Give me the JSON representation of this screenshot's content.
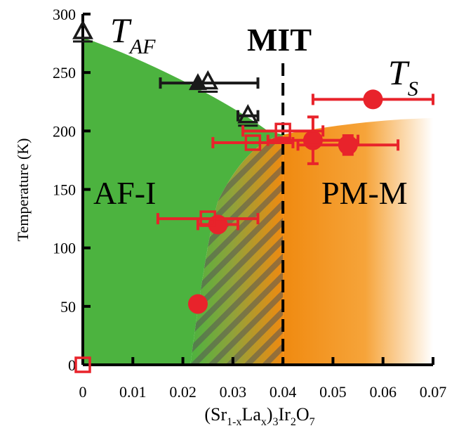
{
  "chart_data": {
    "type": "scatter",
    "title": "",
    "xlabel_parts": {
      "open1": "(Sr",
      "sub1": "1-x",
      "mid1": "La",
      "sub2": "x",
      "mid2": ")",
      "sub3": "3",
      "mid3": "Ir",
      "sub4": "2",
      "mid4": "O",
      "sub5": "7"
    },
    "ylabel": "Temperature (K)",
    "xlim": [
      0,
      0.07
    ],
    "ylim": [
      0,
      300
    ],
    "x_ticks": [
      "0",
      "0.01",
      "0.02",
      "0.03",
      "0.04",
      "0.05",
      "0.06",
      "0.07"
    ],
    "y_ticks": [
      "0",
      "50",
      "100",
      "150",
      "200",
      "250",
      "300"
    ],
    "grid": false,
    "annotations": {
      "tae_main": "T",
      "tae_sub": "AF",
      "ts_main": "T",
      "ts_sub": "S",
      "mit": "MIT",
      "afi": "AF-I",
      "pmm": "PM-M"
    },
    "mit_x": 0.04,
    "colors": {
      "af_region": "#4cb33f",
      "pm_region": "#f39a1e",
      "red": "#e8232b",
      "black": "#1a1a1a"
    },
    "series": [
      {
        "marker": "open-triangle",
        "color": "#1a1a1a",
        "points": [
          {
            "x": 0,
            "y": 285,
            "xerr": 0
          },
          {
            "x": 0.025,
            "y": 242,
            "xerr": 0
          },
          {
            "x": 0.033,
            "y": 213,
            "xerr": 0.002
          }
        ]
      },
      {
        "marker": "filled-triangle",
        "color": "#1a1a1a",
        "points": [
          {
            "x": 0.023,
            "y": 241,
            "xerr": 0.0075,
            "xerr_right": 0.012
          }
        ]
      },
      {
        "marker": "filled-circle",
        "color": "#e8232b",
        "points": [
          {
            "x": 0.023,
            "y": 52,
            "xerr": 0,
            "yerr": 0
          },
          {
            "x": 0.027,
            "y": 120,
            "xerr": 0.004,
            "yerr": 0
          },
          {
            "x": 0.046,
            "y": 192,
            "xerr": 0.009,
            "yerr": 20
          },
          {
            "x": 0.053,
            "y": 188,
            "xerr": 0.01,
            "yerr": 8
          },
          {
            "x": 0.058,
            "y": 227,
            "xerr": 0.012,
            "yerr": 0
          }
        ]
      },
      {
        "marker": "open-square",
        "color": "#e8232b",
        "points": [
          {
            "x": 0,
            "y": 0,
            "xerr": 0
          },
          {
            "x": 0.025,
            "y": 125,
            "xerr": 0.01
          },
          {
            "x": 0.034,
            "y": 190,
            "xerr": 0.008
          },
          {
            "x": 0.04,
            "y": 200,
            "xerr": 0.008
          }
        ]
      }
    ]
  }
}
